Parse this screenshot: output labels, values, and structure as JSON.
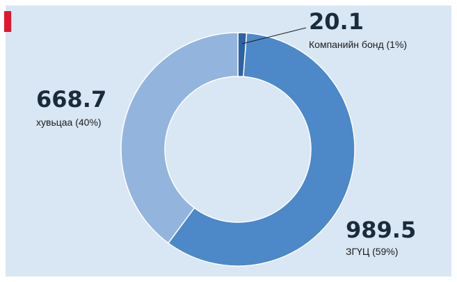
{
  "chart_data": {
    "type": "donut",
    "categories": [
      "Компанийн бонд (1%)",
      "ЗГҮЦ (59%)",
      "хувьцаа (40%)"
    ],
    "values": [
      20.1,
      989.5,
      668.7
    ],
    "colors": [
      "#2f62a3",
      "#4d88c9",
      "#93b4dc"
    ]
  }
}
